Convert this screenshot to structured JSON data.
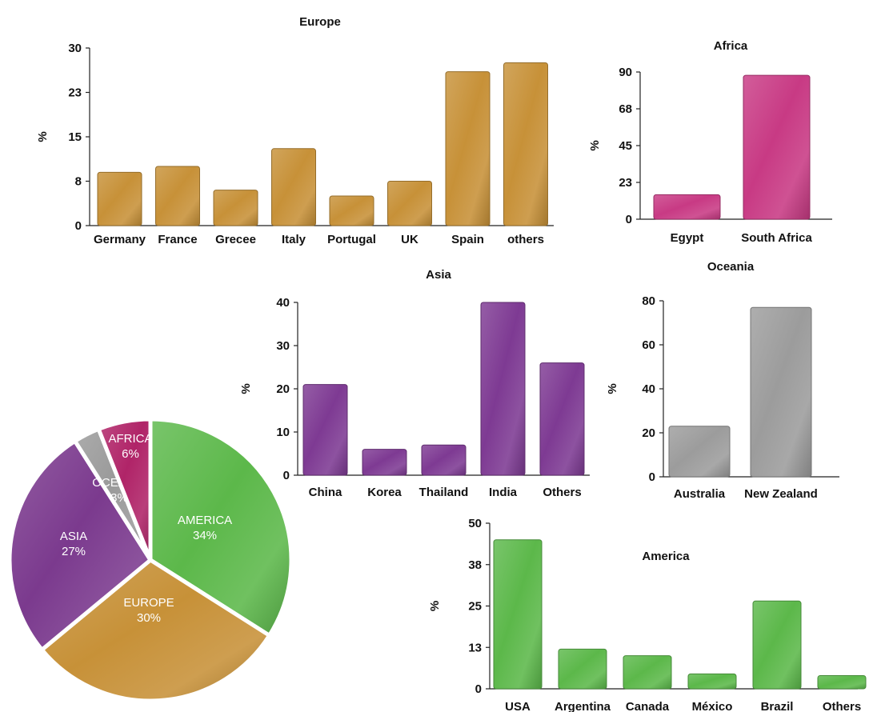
{
  "chart_data": [
    {
      "type": "pie",
      "categories": [
        "AMERICA",
        "EUROPE",
        "ASIA",
        "OCEANIA",
        "AFRICA"
      ],
      "values": [
        34,
        30,
        27,
        3,
        6
      ],
      "value_labels": [
        "34%",
        "30%",
        "27%",
        "3%",
        "6%"
      ],
      "colors": [
        "#5cb84a",
        "#c79138",
        "#7b3a8e",
        "#9a9a9a",
        "#b02468"
      ]
    },
    {
      "type": "bar",
      "title": "Europe",
      "ylabel": "%",
      "categories": [
        "Germany",
        "France",
        "Grecee",
        "Italy",
        "Portugal",
        "UK",
        "Spain",
        "others"
      ],
      "values": [
        9,
        10,
        6,
        13,
        5,
        7.5,
        26,
        27.5
      ],
      "ylim": [
        0,
        30
      ],
      "yticks": [
        "0",
        "8",
        "15",
        "23",
        "30"
      ],
      "color": "#c79138"
    },
    {
      "type": "bar",
      "title": "Africa",
      "ylabel": "%",
      "categories": [
        "Egypt",
        "South Africa"
      ],
      "values": [
        15,
        88
      ],
      "ylim": [
        0,
        90
      ],
      "yticks": [
        "0",
        "23",
        "45",
        "68",
        "90"
      ],
      "color": "#c83a84"
    },
    {
      "type": "bar",
      "title": "Asia",
      "ylabel": "%",
      "categories": [
        "China",
        "Korea",
        "Thailand",
        "India",
        "Others"
      ],
      "values": [
        21,
        6,
        7,
        40,
        26
      ],
      "ylim": [
        0,
        40
      ],
      "yticks": [
        "0",
        "10",
        "20",
        "30",
        "40"
      ],
      "color": "#7e3a93"
    },
    {
      "type": "bar",
      "title": "Oceania",
      "ylabel": "%",
      "categories": [
        "Australia",
        "New Zealand"
      ],
      "values": [
        23,
        77
      ],
      "ylim": [
        0,
        80
      ],
      "yticks": [
        "0",
        "20",
        "40",
        "60",
        "80"
      ],
      "color": "#9c9c9c"
    },
    {
      "type": "bar",
      "title": "America",
      "ylabel": "%",
      "categories": [
        "USA",
        "Argentina",
        "Canada",
        "México",
        "Brazil",
        "Others"
      ],
      "values": [
        45,
        12,
        10,
        4.5,
        26.5,
        4
      ],
      "ylim": [
        0,
        50
      ],
      "yticks": [
        "0",
        "13",
        "25",
        "38",
        "50"
      ],
      "color": "#5cb84a"
    }
  ]
}
